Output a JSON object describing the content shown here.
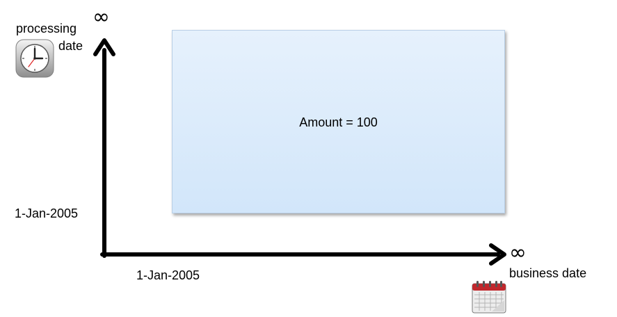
{
  "y_axis": {
    "label_line1": "processing",
    "label_line2": "date",
    "infinity": "∞",
    "origin_label": "1-Jan-2005",
    "icon": "clock-icon"
  },
  "x_axis": {
    "label": "business  date",
    "infinity": "∞",
    "origin_label": "1-Jan-2005",
    "icon": "calendar-icon"
  },
  "region": {
    "text": "Amount = 100",
    "fill": "#d9eafb",
    "border": "#b9cfe6"
  },
  "colors": {
    "axis": "#000000",
    "calendar_red": "#c0282d"
  }
}
